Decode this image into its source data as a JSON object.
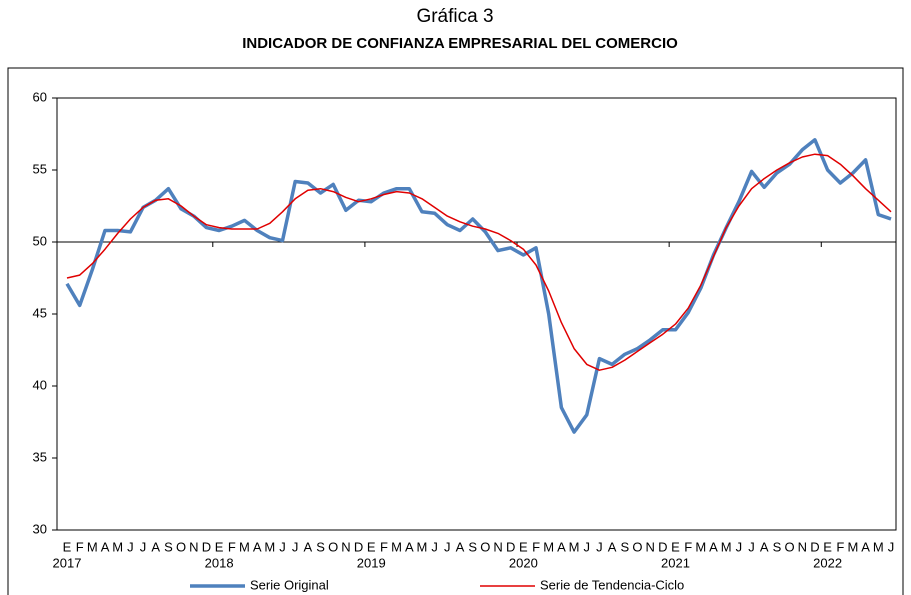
{
  "chart_data": {
    "type": "line",
    "title": "Gráfica 3",
    "subtitle": "INDICADOR DE CONFIANZA EMPRESARIAL DEL COMERCIO",
    "categories": [
      "E",
      "F",
      "M",
      "A",
      "M",
      "J",
      "J",
      "A",
      "S",
      "O",
      "N",
      "D",
      "E",
      "F",
      "M",
      "A",
      "M",
      "J",
      "J",
      "A",
      "S",
      "O",
      "N",
      "D",
      "E",
      "F",
      "M",
      "A",
      "M",
      "J",
      "J",
      "A",
      "S",
      "O",
      "N",
      "D",
      "E",
      "F",
      "M",
      "A",
      "M",
      "J",
      "J",
      "A",
      "S",
      "O",
      "N",
      "D",
      "E",
      "F",
      "M",
      "A",
      "M",
      "J",
      "J",
      "A",
      "S",
      "O",
      "N",
      "D",
      "E",
      "F",
      "M",
      "A",
      "M",
      "J"
    ],
    "years": [
      "2017",
      "2018",
      "2019",
      "2020",
      "2021",
      "2022"
    ],
    "series": [
      {
        "name": "Serie Original",
        "color": "#4f81bd",
        "values": [
          47.1,
          45.6,
          48.1,
          50.8,
          50.8,
          50.7,
          52.4,
          52.9,
          53.7,
          52.3,
          51.8,
          51.0,
          50.8,
          51.1,
          51.5,
          50.8,
          50.3,
          50.1,
          54.2,
          54.1,
          53.4,
          54.0,
          52.2,
          52.9,
          52.8,
          53.4,
          53.7,
          53.7,
          52.1,
          52.0,
          51.2,
          50.8,
          51.6,
          50.7,
          49.4,
          49.6,
          49.1,
          49.6,
          45.0,
          38.5,
          36.8,
          38.0,
          41.9,
          41.5,
          42.2,
          42.6,
          43.2,
          43.9,
          43.9,
          45.1,
          46.8,
          49.1,
          51.0,
          52.8,
          54.9,
          53.8,
          54.8,
          55.4,
          56.4,
          57.1,
          55.0,
          54.1,
          54.8,
          55.7,
          51.9,
          51.6
        ]
      },
      {
        "name": "Serie de Tendencia-Ciclo",
        "color": "#e00000",
        "values": [
          47.5,
          47.7,
          48.5,
          49.5,
          50.6,
          51.6,
          52.4,
          52.9,
          53.0,
          52.5,
          51.8,
          51.2,
          51.0,
          50.9,
          50.9,
          50.9,
          51.3,
          52.1,
          53.0,
          53.6,
          53.7,
          53.5,
          53.1,
          52.8,
          53.0,
          53.3,
          53.5,
          53.4,
          53.0,
          52.4,
          51.8,
          51.4,
          51.1,
          50.9,
          50.6,
          50.1,
          49.5,
          48.4,
          46.6,
          44.4,
          42.6,
          41.5,
          41.1,
          41.3,
          41.8,
          42.4,
          43.0,
          43.6,
          44.3,
          45.4,
          47.0,
          49.0,
          51.0,
          52.5,
          53.7,
          54.4,
          55.0,
          55.5,
          55.9,
          56.1,
          56.0,
          55.4,
          54.6,
          53.7,
          52.9,
          52.1
        ]
      }
    ],
    "ylim": [
      30,
      60
    ],
    "yticks": [
      30,
      35,
      40,
      45,
      50,
      55,
      60
    ],
    "x_axis_at": 50,
    "legend": "bottom"
  }
}
